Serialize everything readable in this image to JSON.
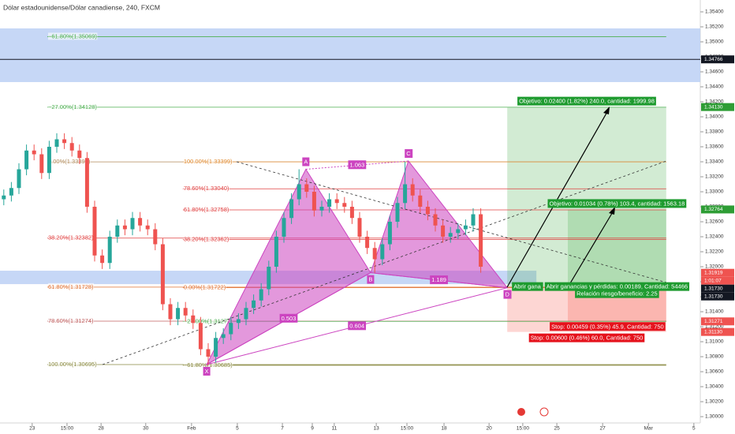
{
  "chart_data": {
    "type": "candlestick",
    "title": "Dólar estadounidense/Dólar canadiense, 240, FXCM",
    "up_color": "#26a69a",
    "down_color": "#ef5350",
    "xlim": [
      -1,
      184
    ],
    "ylim": [
      1.29916,
      1.35558
    ],
    "x": [
      0,
      2,
      4,
      6,
      8,
      10,
      12,
      14,
      16,
      18,
      20,
      22,
      24,
      26,
      28,
      30,
      32,
      34,
      36,
      38,
      40,
      42,
      44,
      46,
      48,
      50,
      52,
      54,
      56,
      58,
      60,
      62,
      64,
      66,
      68,
      70,
      72,
      74,
      76,
      78,
      80,
      82,
      84,
      86,
      88,
      90,
      92,
      94,
      96,
      98,
      100,
      102,
      104,
      106,
      108,
      110,
      112,
      114,
      116,
      118,
      120,
      122,
      124,
      126
    ],
    "candles": [
      [
        1.329,
        1.3303,
        1.3282,
        1.3295
      ],
      [
        1.3295,
        1.3313,
        1.3287,
        1.3305
      ],
      [
        1.3305,
        1.3338,
        1.3297,
        1.333
      ],
      [
        1.333,
        1.3363,
        1.3322,
        1.3355
      ],
      [
        1.3355,
        1.3363,
        1.3342,
        1.335
      ],
      [
        1.335,
        1.3358,
        1.3317,
        1.3325
      ],
      [
        1.3325,
        1.3368,
        1.3317,
        1.336
      ],
      [
        1.336,
        1.3378,
        1.3352,
        1.337
      ],
      [
        1.337,
        1.3378,
        1.3357,
        1.3365
      ],
      [
        1.3365,
        1.3373,
        1.3347,
        1.3355
      ],
      [
        1.3355,
        1.3363,
        1.3337,
        1.3345
      ],
      [
        1.3345,
        1.3353,
        1.3272,
        1.328
      ],
      [
        1.328,
        1.3288,
        1.3207,
        1.3215
      ],
      [
        1.3215,
        1.3223,
        1.3197,
        1.3205
      ],
      [
        1.3205,
        1.3248,
        1.3197,
        1.324
      ],
      [
        1.324,
        1.3263,
        1.3232,
        1.3255
      ],
      [
        1.3255,
        1.3263,
        1.3242,
        1.325
      ],
      [
        1.325,
        1.3273,
        1.3242,
        1.3265
      ],
      [
        1.3265,
        1.3273,
        1.3247,
        1.3255
      ],
      [
        1.3255,
        1.3263,
        1.3242,
        1.325
      ],
      [
        1.325,
        1.3258,
        1.3222,
        1.323
      ],
      [
        1.323,
        1.3238,
        1.3142,
        1.315
      ],
      [
        1.315,
        1.3158,
        1.3122,
        1.313
      ],
      [
        1.313,
        1.3153,
        1.3122,
        1.3145
      ],
      [
        1.3145,
        1.3153,
        1.3127,
        1.3135
      ],
      [
        1.3135,
        1.3143,
        1.3117,
        1.3125
      ],
      [
        1.3125,
        1.3133,
        1.3082,
        1.309
      ],
      [
        1.309,
        1.3098,
        1.3069,
        1.308
      ],
      [
        1.308,
        1.3113,
        1.3072,
        1.3105
      ],
      [
        1.3105,
        1.3118,
        1.3097,
        1.311
      ],
      [
        1.311,
        1.3133,
        1.3102,
        1.3125
      ],
      [
        1.3125,
        1.3138,
        1.3117,
        1.313
      ],
      [
        1.313,
        1.3153,
        1.3122,
        1.3145
      ],
      [
        1.3145,
        1.3163,
        1.3137,
        1.3155
      ],
      [
        1.3155,
        1.3178,
        1.3147,
        1.317
      ],
      [
        1.317,
        1.3208,
        1.3162,
        1.32
      ],
      [
        1.32,
        1.3248,
        1.3192,
        1.324
      ],
      [
        1.324,
        1.3273,
        1.3232,
        1.3265
      ],
      [
        1.3265,
        1.3298,
        1.3257,
        1.329
      ],
      [
        1.329,
        1.333,
        1.3282,
        1.331
      ],
      [
        1.331,
        1.3318,
        1.3292,
        1.33
      ],
      [
        1.33,
        1.3308,
        1.3267,
        1.3275
      ],
      [
        1.3275,
        1.3288,
        1.3267,
        1.328
      ],
      [
        1.328,
        1.3298,
        1.3272,
        1.329
      ],
      [
        1.329,
        1.3298,
        1.3277,
        1.3285
      ],
      [
        1.3285,
        1.3293,
        1.3272,
        1.328
      ],
      [
        1.328,
        1.3288,
        1.3257,
        1.3265
      ],
      [
        1.3265,
        1.3273,
        1.3232,
        1.324
      ],
      [
        1.324,
        1.3248,
        1.3217,
        1.3225
      ],
      [
        1.3225,
        1.3233,
        1.3192,
        1.321
      ],
      [
        1.321,
        1.3238,
        1.3202,
        1.323
      ],
      [
        1.323,
        1.3268,
        1.3222,
        1.326
      ],
      [
        1.326,
        1.3293,
        1.3252,
        1.3285
      ],
      [
        1.3285,
        1.334,
        1.3277,
        1.331
      ],
      [
        1.331,
        1.3318,
        1.3287,
        1.3295
      ],
      [
        1.3295,
        1.3303,
        1.3272,
        1.328
      ],
      [
        1.328,
        1.3288,
        1.3262,
        1.327
      ],
      [
        1.327,
        1.3278,
        1.3247,
        1.3255
      ],
      [
        1.3255,
        1.3263,
        1.3232,
        1.324
      ],
      [
        1.324,
        1.3253,
        1.3232,
        1.3245
      ],
      [
        1.3245,
        1.3258,
        1.3237,
        1.325
      ],
      [
        1.325,
        1.3263,
        1.3242,
        1.3255
      ],
      [
        1.3255,
        1.3278,
        1.3247,
        1.327
      ],
      [
        1.327,
        1.3278,
        1.3192,
        1.32
      ]
    ],
    "yticks": [
      {
        "value": 1.3,
        "label": "1.30000"
      },
      {
        "value": 1.302,
        "label": "1.30200"
      },
      {
        "value": 1.304,
        "label": "1.30400"
      },
      {
        "value": 1.306,
        "label": "1.30600"
      },
      {
        "value": 1.308,
        "label": "1.30800"
      },
      {
        "value": 1.31,
        "label": "1.31000"
      },
      {
        "value": 1.312,
        "label": "1.31200"
      },
      {
        "value": 1.314,
        "label": "1.31400"
      },
      {
        "value": 1.316,
        "label": "1.31600"
      },
      {
        "value": 1.318,
        "label": "1.31800"
      },
      {
        "value": 1.32,
        "label": "1.32000"
      },
      {
        "value": 1.322,
        "label": "1.32200"
      },
      {
        "value": 1.324,
        "label": "1.32400"
      },
      {
        "value": 1.326,
        "label": "1.32600"
      },
      {
        "value": 1.328,
        "label": "1.32800"
      },
      {
        "value": 1.33,
        "label": "1.33000"
      },
      {
        "value": 1.332,
        "label": "1.33200"
      },
      {
        "value": 1.334,
        "label": "1.33400"
      },
      {
        "value": 1.336,
        "label": "1.33600"
      },
      {
        "value": 1.338,
        "label": "1.33800"
      },
      {
        "value": 1.34,
        "label": "1.34000"
      },
      {
        "value": 1.342,
        "label": "1.34200"
      },
      {
        "value": 1.344,
        "label": "1.34400"
      },
      {
        "value": 1.346,
        "label": "1.34600"
      },
      {
        "value": 1.348,
        "label": "1.34800"
      },
      {
        "value": 1.35,
        "label": "1.35000"
      },
      {
        "value": 1.352,
        "label": "1.35200"
      },
      {
        "value": 1.354,
        "label": "1.35400"
      }
    ],
    "xticks": [
      {
        "value": 7.5,
        "label": "23"
      },
      {
        "value": 16.7,
        "label": "15:00"
      },
      {
        "value": 25.7,
        "label": "28"
      },
      {
        "value": 37.5,
        "label": "30"
      },
      {
        "value": 49.6,
        "label": "Feb"
      },
      {
        "value": 61.7,
        "label": "5"
      },
      {
        "value": 73.6,
        "label": "7"
      },
      {
        "value": 81.5,
        "label": "9"
      },
      {
        "value": 87.3,
        "label": "11"
      },
      {
        "value": 98.4,
        "label": "13"
      },
      {
        "value": 106.5,
        "label": "15:00"
      },
      {
        "value": 116.3,
        "label": "18"
      },
      {
        "value": 128.2,
        "label": "20"
      },
      {
        "value": 137.1,
        "label": "15:00"
      },
      {
        "value": 146.1,
        "label": "25"
      },
      {
        "value": 158.2,
        "label": "27"
      },
      {
        "value": 170.3,
        "label": "Mar"
      },
      {
        "value": 182.3,
        "label": "5"
      }
    ],
    "zones": [
      {
        "top": 1.35179,
        "bottom": 1.34463,
        "x_range": [
          -1,
          184
        ],
        "color": "#bcd0f5"
      },
      {
        "top": 1.31947,
        "bottom": 1.31768,
        "x_range": [
          -1,
          140.7
        ],
        "color": "#bcd0f5"
      }
    ],
    "last_line": {
      "value": 1.34766,
      "color": "#131722"
    },
    "levels": [
      {
        "value": 1.35069,
        "label": "−61.80%(1.35069)",
        "color": "#4caf50",
        "x_range": [
          11.5,
          175
        ]
      },
      {
        "value": 1.34128,
        "label": "−27.00%(1.34128)",
        "color": "#4caf50",
        "x_range": [
          11.5,
          175
        ]
      },
      {
        "value": 1.33399,
        "label": "0.00%(1.33399)",
        "color": "#b08a5a",
        "x_range": [
          11.5,
          175
        ]
      },
      {
        "value": 1.32382,
        "label": "38.20%(1.32382)",
        "color": "#e04040",
        "x_range": [
          11.5,
          175
        ]
      },
      {
        "value": 1.31728,
        "label": "61.80%(1.31728)",
        "color": "#e07030",
        "x_range": [
          11.5,
          175
        ]
      },
      {
        "value": 1.31274,
        "label": "78.60%(1.31274)",
        "color": "#c06060",
        "x_range": [
          11.5,
          175
        ]
      },
      {
        "value": 1.30695,
        "label": "100.00%(1.30695)",
        "color": "#8a8a40",
        "x_range": [
          11.5,
          175
        ]
      },
      {
        "value": 1.33399,
        "label": "100.00%(1.33399)",
        "color": "#e08a30",
        "x_range": [
          47.3,
          175
        ]
      },
      {
        "value": 1.3304,
        "label": "78.60%(1.33040)",
        "color": "#e04040",
        "x_range": [
          47.3,
          175
        ]
      },
      {
        "value": 1.32758,
        "label": "61.80%(1.32758)",
        "color": "#e04040",
        "x_range": [
          47.3,
          175
        ]
      },
      {
        "value": 1.32362,
        "label": "38.20%(1.32362)",
        "color": "#e04040",
        "x_range": [
          47.3,
          175
        ]
      },
      {
        "value": 1.31722,
        "label": "0.00%(1.31722)",
        "color": "#e07030",
        "x_range": [
          47.3,
          175
        ]
      },
      {
        "value": 1.31271,
        "label": "−27.00%(1.31271)",
        "color": "#4caf50",
        "x_range": [
          47.3,
          175
        ]
      },
      {
        "value": 1.30685,
        "label": "−61.80%(1.30685)",
        "color": "#8a8a40",
        "x_range": [
          47.3,
          175
        ]
      }
    ],
    "pattern": {
      "color": "#cc44c0",
      "points": [
        {
          "label": "X",
          "x": 53.6,
          "price": 1.30695
        },
        {
          "label": "A",
          "x": 79.8,
          "price": 1.333
        },
        {
          "label": "B",
          "x": 96.9,
          "price": 1.3192
        },
        {
          "label": "C",
          "x": 106.9,
          "price": 1.3341
        },
        {
          "label": "D",
          "x": 133,
          "price": 1.3172
        }
      ],
      "ratios": [
        "1.063",
        "0.503",
        "0.604",
        "1.189"
      ]
    },
    "positions": [
      {
        "entry": 1.3173,
        "target": 1.3413,
        "stop": 1.3113,
        "x_range": [
          133,
          175
        ],
        "target_label": "Objetivo: 0.02400 (1.82%) 240.0, cantidad: 1999.98",
        "open_label": "Abrir gana",
        "stop_label": "Stop: 0.00600 (0.46%) 60.0, Cantidad: 750"
      },
      {
        "entry": 1.3173,
        "target": 1.32764,
        "stop": 1.31271,
        "x_range": [
          149,
          175
        ],
        "target_label": "Objetivo: 0.01034 (0.78%) 103.4, cantidad: 1563.18",
        "open_label": "Abrir ganancias y pérdidas: 0.00189, Cantidad: 54466",
        "ratio_label": "Relación riesgo/beneficio: 2.25",
        "stop_label": "Stop: 0.00459 (0.35%) 45.9, Cantidad: 750"
      }
    ],
    "price_labels": [
      {
        "value": 1.34766,
        "label": "1.34766",
        "color": "#131722"
      },
      {
        "value": 1.3413,
        "label": "1.34130",
        "color": "#2e9d35"
      },
      {
        "value": 1.32764,
        "label": "1.32764",
        "color": "#2e9d35"
      },
      {
        "value": 1.31919,
        "label": "1.31919",
        "color": "#ef5350"
      },
      {
        "value": 1.3173,
        "label": "1.31730",
        "color": "#131722"
      },
      {
        "value": 1.3173,
        "label": "1.31730",
        "color": "#131722"
      },
      {
        "value": 1.31271,
        "label": "1.31271",
        "color": "#ef5350"
      },
      {
        "value": 1.3113,
        "label": "1.31130",
        "color": "#ef5350"
      }
    ],
    "countdown": "1:01:07"
  }
}
